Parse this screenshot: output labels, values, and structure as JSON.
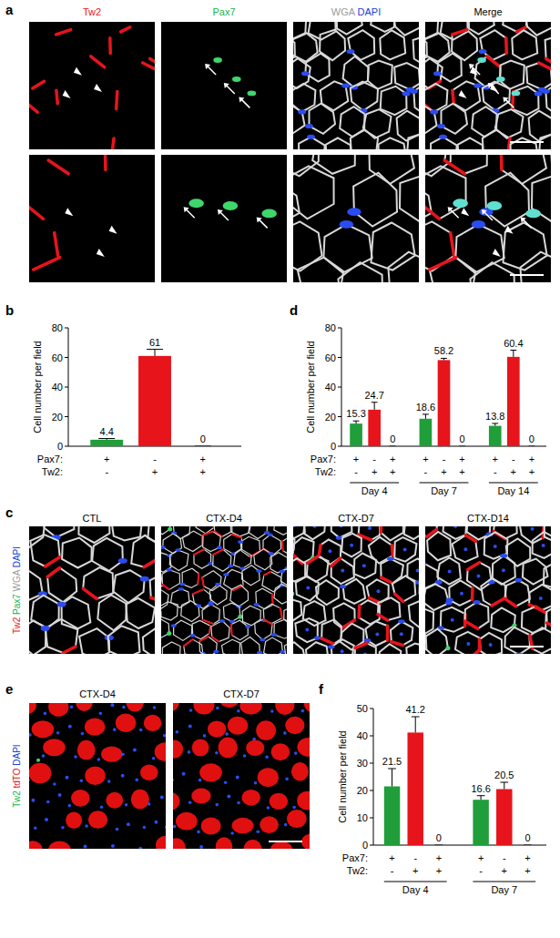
{
  "panel_a": {
    "panel_label": "a",
    "columns": [
      [
        {
          "text": "Tw2",
          "color": "#e8141b"
        }
      ],
      [
        {
          "text": "Pax7",
          "color": "#22b14c"
        }
      ],
      [
        {
          "text": "WGA",
          "color": "#9a9a9a"
        },
        {
          "text": "DAPI",
          "color": "#1a3fd6"
        }
      ],
      [
        {
          "text": "Merge",
          "color": "#000000"
        }
      ]
    ]
  },
  "panel_c": {
    "panel_label": "c",
    "side_label": [
      {
        "text": "Tw2",
        "color": "#e8141b"
      },
      {
        "text": "Pax7",
        "color": "#22b14c"
      },
      {
        "text": "WGA",
        "color": "#9a9a9a"
      },
      {
        "text": "DAPI",
        "color": "#1a3fd6"
      }
    ],
    "titles": [
      "CTL",
      "CTX-D4",
      "CTX-D7",
      "CTX-D14"
    ]
  },
  "panel_e": {
    "panel_label": "e",
    "side_label": [
      {
        "text": "Tw2",
        "color": "#22b14c"
      },
      {
        "text": "tdTO",
        "color": "#e8141b"
      },
      {
        "text": "DAPI",
        "color": "#1a3fd6"
      }
    ],
    "titles": [
      "CTX-D4",
      "CTX-D7"
    ]
  },
  "chart_data": [
    {
      "type": "bar",
      "panel_label": "b",
      "y_label": "Cell number per field",
      "categories": [
        null,
        null,
        null
      ],
      "x_label_rows": [
        {
          "label": "Pax7:",
          "values": [
            "+",
            "-",
            "+"
          ]
        },
        {
          "label": "Tw2:",
          "values": [
            "-",
            "+",
            "+"
          ]
        }
      ],
      "values": [
        4.4,
        61,
        0
      ],
      "errors": [
        0.8,
        4.5,
        0
      ],
      "colors": [
        "#1f9e3a",
        "#e8141b",
        "#e8141b"
      ],
      "ylim": [
        0,
        80
      ],
      "yticks": [
        0,
        20,
        40,
        60,
        80
      ],
      "data_labels": true
    },
    {
      "type": "bar",
      "panel_label": "d",
      "y_label": "Cell number per field",
      "categories": [
        null,
        null,
        null,
        null,
        null,
        null,
        null,
        null,
        null
      ],
      "x_label_rows": [
        {
          "label": "Pax7:",
          "values": [
            "+",
            "-",
            "+",
            "+",
            "-",
            "+",
            "+",
            "-",
            "+"
          ]
        },
        {
          "label": "Tw2:",
          "values": [
            "-",
            "+",
            "+",
            "-",
            "+",
            "+",
            "-",
            "+",
            "+"
          ]
        }
      ],
      "groups": [
        "Day 4",
        "Day 7",
        "Day 14"
      ],
      "values": [
        15.3,
        24.7,
        0,
        18.6,
        58.2,
        0,
        13.8,
        60.4,
        0
      ],
      "errors": [
        1.8,
        5,
        0,
        3,
        1.2,
        0,
        1.6,
        4.5,
        0
      ],
      "colors": [
        "#1f9e3a",
        "#e8141b",
        "#e8141b",
        "#1f9e3a",
        "#e8141b",
        "#e8141b",
        "#1f9e3a",
        "#e8141b",
        "#e8141b"
      ],
      "ylim": [
        0,
        80
      ],
      "yticks": [
        0,
        20,
        40,
        60,
        80
      ],
      "data_labels": true
    },
    {
      "type": "bar",
      "panel_label": "f",
      "y_label": "Cell number per field",
      "categories": [
        null,
        null,
        null,
        null,
        null,
        null
      ],
      "x_label_rows": [
        {
          "label": "Pax7:",
          "values": [
            "+",
            "-",
            "+",
            "+",
            "-",
            "+"
          ]
        },
        {
          "label": "Tw2:",
          "values": [
            "-",
            "+",
            "+",
            "-",
            "+",
            "+"
          ]
        }
      ],
      "groups": [
        "Day 4",
        "Day 7"
      ],
      "values": [
        21.5,
        41.2,
        0,
        16.6,
        20.5,
        0
      ],
      "errors": [
        6.5,
        5.8,
        0,
        1.5,
        2.5,
        0
      ],
      "colors": [
        "#1f9e3a",
        "#e8141b",
        "#e8141b",
        "#1f9e3a",
        "#e8141b",
        "#e8141b"
      ],
      "ylim": [
        0,
        50
      ],
      "yticks": [
        0,
        10,
        20,
        30,
        40,
        50
      ],
      "data_labels": true
    }
  ]
}
